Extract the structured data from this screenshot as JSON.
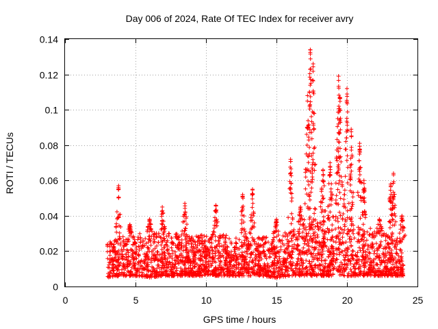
{
  "chart_data": {
    "type": "scatter",
    "title": "Day 006 of 2024, Rate Of TEC Index for receiver avry",
    "xlabel": "GPS time / hours",
    "ylabel": "ROTI / TECUs",
    "xlim": [
      0,
      25
    ],
    "ylim": [
      0,
      0.14
    ],
    "xticks": [
      0,
      5,
      10,
      15,
      20,
      25
    ],
    "xtick_labels": [
      "0",
      "5",
      "10",
      "15",
      "20",
      "25"
    ],
    "yticks": [
      0,
      0.02,
      0.04,
      0.06,
      0.08,
      0.1,
      0.12,
      0.14
    ],
    "ytick_labels": [
      "0",
      "0.02",
      "0.04",
      "0.06",
      "0.08",
      "0.1",
      "0.12",
      "0.14"
    ],
    "grid": true,
    "marker": "+",
    "color": "#ff0000",
    "series": [
      {
        "name": "ROTI",
        "x_range": [
          3.0,
          24.0
        ],
        "baseline_envelope": {
          "x": [
            3,
            4,
            5,
            6,
            7,
            8,
            9,
            10,
            11,
            12,
            13,
            14,
            15,
            16,
            17,
            18,
            19,
            20,
            21,
            22,
            23,
            24
          ],
          "typical_min": [
            0.005,
            0.006,
            0.006,
            0.005,
            0.006,
            0.006,
            0.006,
            0.006,
            0.006,
            0.006,
            0.006,
            0.006,
            0.005,
            0.006,
            0.006,
            0.006,
            0.006,
            0.006,
            0.006,
            0.006,
            0.006,
            0.006
          ],
          "typical_max": [
            0.025,
            0.028,
            0.03,
            0.03,
            0.032,
            0.03,
            0.028,
            0.03,
            0.03,
            0.028,
            0.028,
            0.028,
            0.03,
            0.032,
            0.035,
            0.038,
            0.04,
            0.04,
            0.035,
            0.032,
            0.03,
            0.028
          ]
        },
        "peaks": [
          {
            "x": 3.8,
            "y": 0.057
          },
          {
            "x": 4.6,
            "y": 0.035
          },
          {
            "x": 6.0,
            "y": 0.038
          },
          {
            "x": 6.9,
            "y": 0.045
          },
          {
            "x": 8.5,
            "y": 0.047
          },
          {
            "x": 10.7,
            "y": 0.046
          },
          {
            "x": 12.6,
            "y": 0.052
          },
          {
            "x": 13.3,
            "y": 0.055
          },
          {
            "x": 15.0,
            "y": 0.038
          },
          {
            "x": 16.0,
            "y": 0.072
          },
          {
            "x": 16.7,
            "y": 0.045
          },
          {
            "x": 17.2,
            "y": 0.108
          },
          {
            "x": 17.4,
            "y": 0.134
          },
          {
            "x": 17.6,
            "y": 0.126
          },
          {
            "x": 18.3,
            "y": 0.066
          },
          {
            "x": 18.8,
            "y": 0.07
          },
          {
            "x": 19.4,
            "y": 0.119
          },
          {
            "x": 19.5,
            "y": 0.107
          },
          {
            "x": 20.0,
            "y": 0.112
          },
          {
            "x": 20.3,
            "y": 0.089
          },
          {
            "x": 20.9,
            "y": 0.081
          },
          {
            "x": 21.2,
            "y": 0.06
          },
          {
            "x": 22.3,
            "y": 0.038
          },
          {
            "x": 23.1,
            "y": 0.058
          },
          {
            "x": 23.3,
            "y": 0.064
          },
          {
            "x": 23.9,
            "y": 0.04
          }
        ]
      }
    ]
  }
}
